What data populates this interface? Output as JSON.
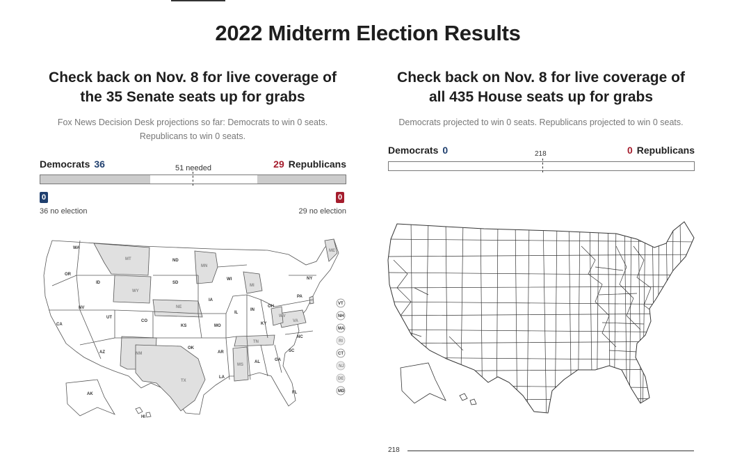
{
  "page_title": "2022 Midterm Election Results",
  "senate": {
    "heading_line1": "Check back on Nov. 8 for live coverage of",
    "heading_line2": "the 35 Senate seats up for grabs",
    "sub_line1": "Fox News Decision Desk projections so far: Democrats to win 0 seats.",
    "sub_line2": "Republicans to win 0 seats.",
    "dem_label": "Democrats",
    "dem_count": "36",
    "rep_label": "Republicans",
    "rep_count": "29",
    "needed_label": "51 needed",
    "dem_projected": "0",
    "rep_projected": "0",
    "dem_no_election": "36 no election",
    "rep_no_election": "29 no election",
    "state_labels": [
      "WA",
      "OR",
      "CA",
      "NV",
      "ID",
      "MT",
      "WY",
      "UT",
      "AZ",
      "CO",
      "NM",
      "ND",
      "SD",
      "NE",
      "KS",
      "OK",
      "TX",
      "MN",
      "IA",
      "MO",
      "AR",
      "LA",
      "WI",
      "IL",
      "MI",
      "IN",
      "KY",
      "TN",
      "MS",
      "AL",
      "GA",
      "FL",
      "OH",
      "WV",
      "VA",
      "NC",
      "SC",
      "PA",
      "NY",
      "ME",
      "AK",
      "HI"
    ],
    "small_state_badges": [
      "VT",
      "NH",
      "MA",
      "RI",
      "CT",
      "NJ",
      "DE",
      "MD"
    ],
    "colors": {
      "dem": "#1f3f6e",
      "rep": "#a51d2d",
      "no_election": "#cccccc",
      "up": "#ffffff"
    }
  },
  "house": {
    "heading_line1": "Check back on Nov. 8 for live coverage of",
    "heading_line2": "all 435 House seats up for grabs",
    "sub_line1": "Democrats projected to win 0 seats. Republicans projected to win 0 seats.",
    "dem_label": "Democrats",
    "dem_count": "0",
    "rep_label": "Republicans",
    "rep_count": "0",
    "needed_label": "218",
    "bottom_label": "218"
  }
}
